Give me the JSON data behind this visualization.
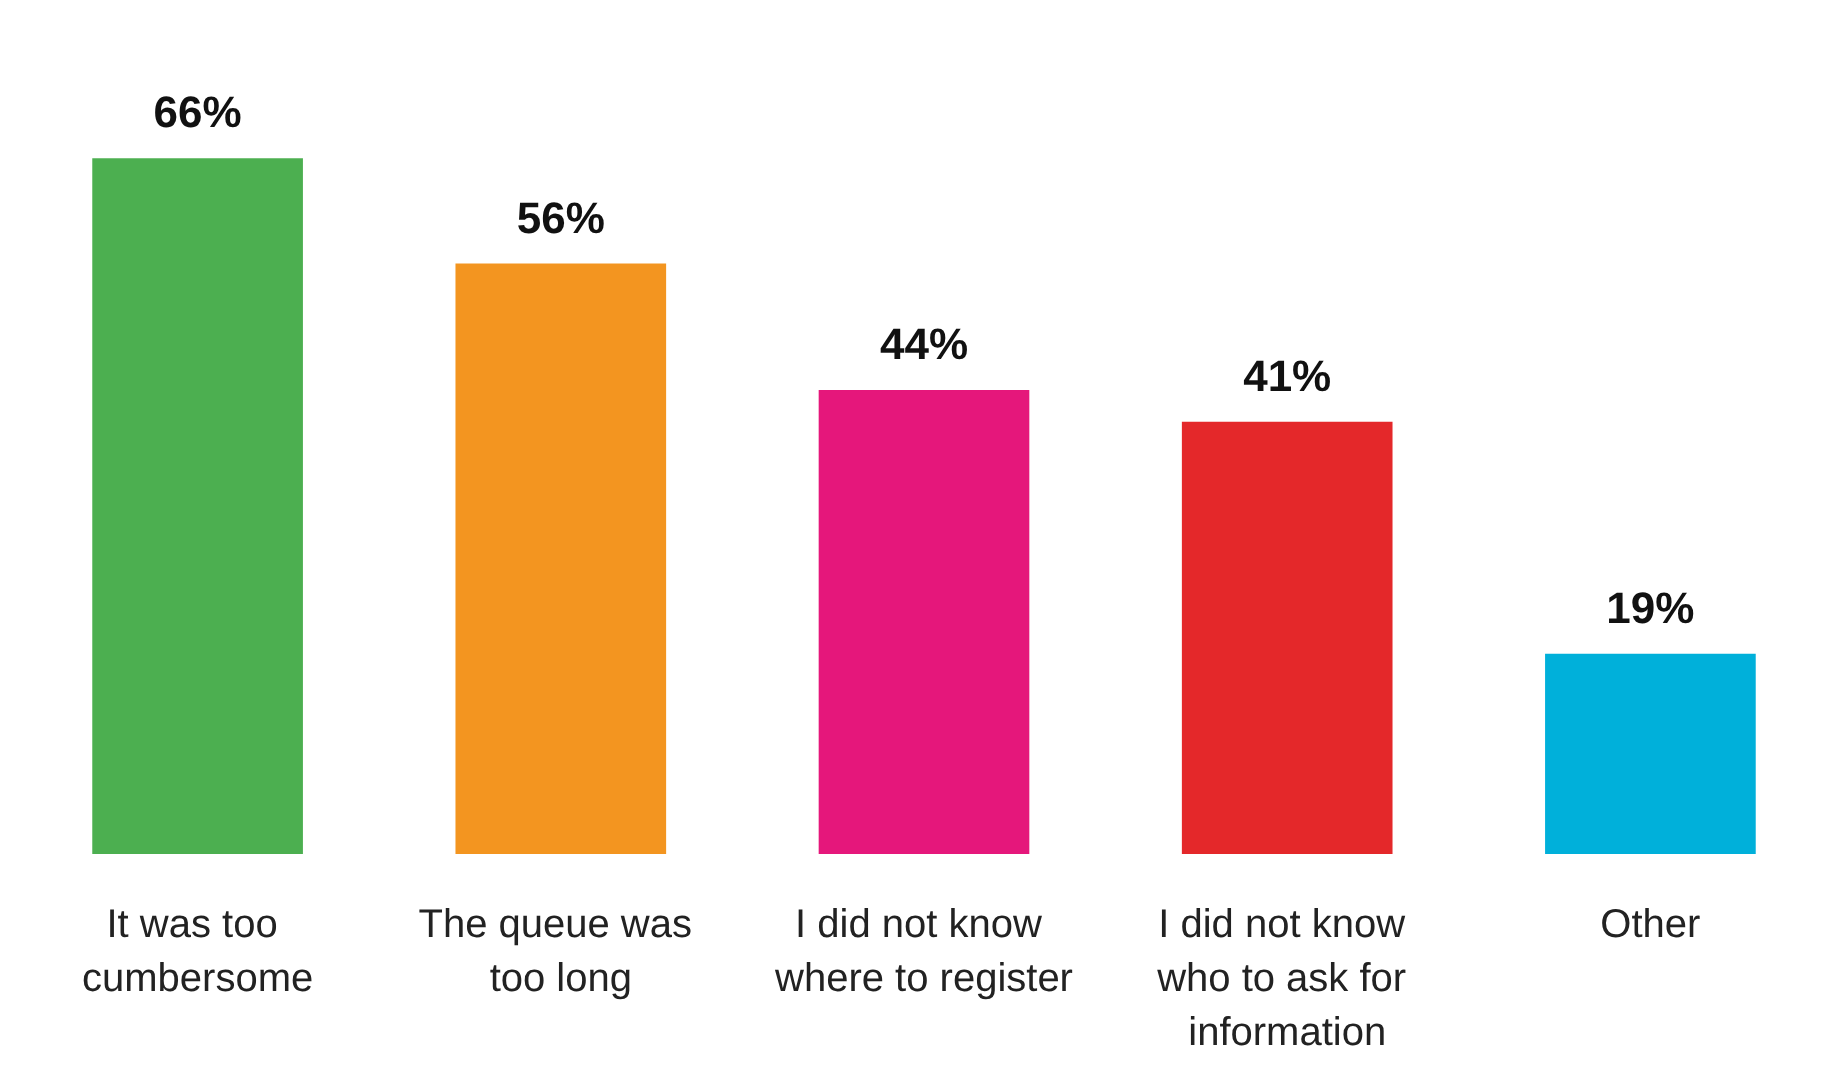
{
  "chart_data": {
    "type": "bar",
    "categories": [
      "It was too cumbersome",
      "The queue was too long",
      "I did not know where to register",
      "I did not know who to ask for information",
      "Other"
    ],
    "values": [
      66,
      56,
      44,
      41,
      19
    ],
    "colors": [
      "#4caf50",
      "#f39520",
      "#e5177b",
      "#e4282a",
      "#00b0da"
    ],
    "value_labels": [
      "66%",
      "56%",
      "44%",
      "41%",
      "19%"
    ]
  }
}
